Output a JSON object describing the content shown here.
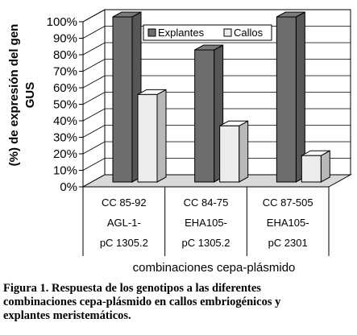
{
  "chart_data": {
    "type": "bar",
    "three_d": true,
    "categories": [
      [
        "CC 85-92",
        "AGL-1-",
        "pC 1305.2"
      ],
      [
        "CC 84-75",
        "EHA105-",
        "pC 1305.2"
      ],
      [
        "CC 87-505",
        "EHA105-",
        "pC 2301"
      ]
    ],
    "series": [
      {
        "name": "Explantes",
        "values": [
          100,
          80,
          100
        ],
        "color": "#6e6e6e"
      },
      {
        "name": "Callos",
        "values": [
          53,
          34,
          16
        ],
        "color": "#ececec"
      }
    ],
    "ylabel_lines": [
      "(%) de expresión del gen",
      "GUS"
    ],
    "xlabel": "combinaciones cepa-plásmido",
    "ylim": [
      0,
      100
    ],
    "yticks": [
      "0%",
      "10%",
      "20%",
      "30%",
      "40%",
      "50%",
      "60%",
      "70%",
      "80%",
      "90%",
      "100%"
    ],
    "grid": true,
    "legend_position": "top-right"
  },
  "caption_lines": [
    "Figura 1. Respuesta de los genotipos a las diferentes",
    "combinaciones cepa-plásmido en callos embriogénicos y",
    "explantes meristemáticos."
  ]
}
